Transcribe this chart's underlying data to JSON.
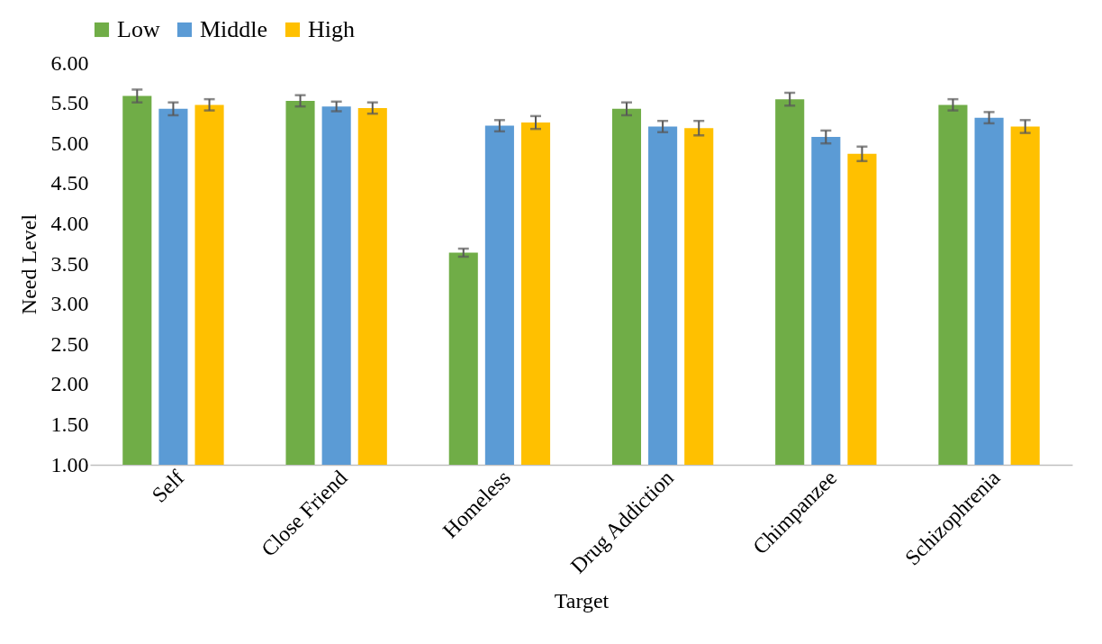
{
  "chart_data": {
    "type": "bar",
    "xlabel": "Target",
    "ylabel": "Need Level",
    "categories": [
      "Self",
      "Close Friend",
      "Homeless",
      "Drug Addiction",
      "Chimpanzee",
      "Schizophrenia"
    ],
    "series": [
      {
        "name": "Low",
        "color": "#70ad47",
        "values": [
          5.59,
          5.53,
          3.64,
          5.43,
          5.55,
          5.48
        ],
        "errors": [
          0.08,
          0.07,
          0.05,
          0.08,
          0.08,
          0.07
        ]
      },
      {
        "name": "Middle",
        "color": "#5b9bd5",
        "values": [
          5.43,
          5.46,
          5.22,
          5.21,
          5.08,
          5.32
        ],
        "errors": [
          0.08,
          0.06,
          0.07,
          0.07,
          0.08,
          0.07
        ]
      },
      {
        "name": "High",
        "color": "#ffc000",
        "values": [
          5.48,
          5.44,
          5.26,
          5.19,
          4.87,
          5.21
        ],
        "errors": [
          0.07,
          0.07,
          0.08,
          0.09,
          0.09,
          0.08
        ]
      }
    ],
    "ylim": [
      1,
      6
    ],
    "yticks": [
      {
        "value": 1,
        "label": "1.00"
      },
      {
        "value": 1.5,
        "label": "1.50"
      },
      {
        "value": 2,
        "label": "2.00"
      },
      {
        "value": 2.5,
        "label": "2.50"
      },
      {
        "value": 3,
        "label": "3.00"
      },
      {
        "value": 3.5,
        "label": "3.50"
      },
      {
        "value": 4,
        "label": "4.00"
      },
      {
        "value": 4.5,
        "label": "4.50"
      },
      {
        "value": 5,
        "label": "5.00"
      },
      {
        "value": 5.5,
        "label": "5.50"
      },
      {
        "value": 6,
        "label": "6.00"
      }
    ],
    "grid": false,
    "legend": "top"
  }
}
